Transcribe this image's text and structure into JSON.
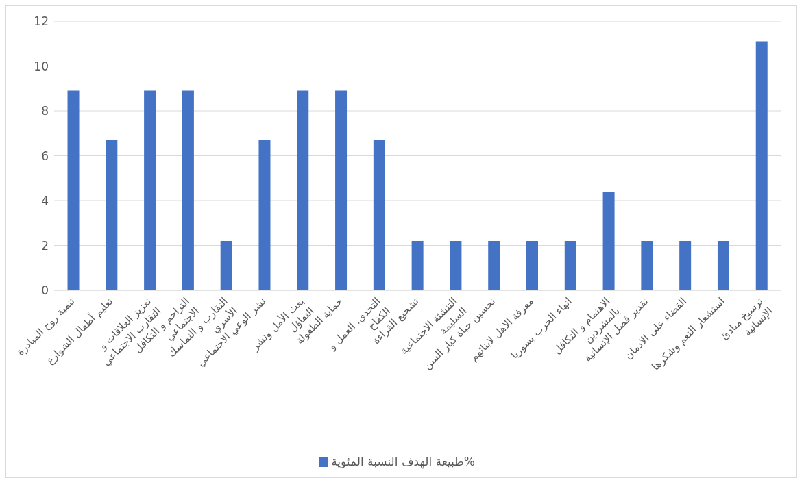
{
  "chart_data": {
    "type": "bar",
    "categories": [
      "تنمية روح المبادرة",
      "تعليم أطفال الشوارع",
      "تعزيز العلاقات و التقارب الاجتماعي",
      "التراحم و التكافل الاجتماعي",
      "التقارب و التماسك الأسري",
      "نشر الوعي الاجتماعي",
      "بعث الأمل ونشر التفاؤل",
      "حماية الطفولة",
      "التحدي، العمل و الكفاح",
      "تشجيع القراءة",
      "التنشئة الاجتماعية السليمة",
      "تحسين حياة كبار السن",
      "معرفة الاهل لابنائهم",
      "انهاء الحرب بسوريا",
      "الاهتمام و التكافل بالمشردين",
      "تقدير فضل الإنسانية",
      "القضاء على الادمان",
      "استشعار النعم وشكرها",
      "ترسيخ مبادئ الإنسانية"
    ],
    "series": [
      {
        "name": "طبيعة الهدف النسبة المئوية%",
        "color": "#4472c4",
        "values": [
          8.9,
          6.7,
          8.9,
          8.9,
          2.2,
          6.7,
          8.9,
          8.9,
          6.7,
          2.2,
          2.2,
          2.2,
          2.2,
          2.2,
          4.4,
          2.2,
          2.2,
          2.2,
          11.1
        ]
      }
    ],
    "ylim": [
      0,
      12
    ],
    "yticks": [
      0,
      2,
      4,
      6,
      8,
      10,
      12
    ],
    "grid": "y",
    "legend": "bottom"
  }
}
